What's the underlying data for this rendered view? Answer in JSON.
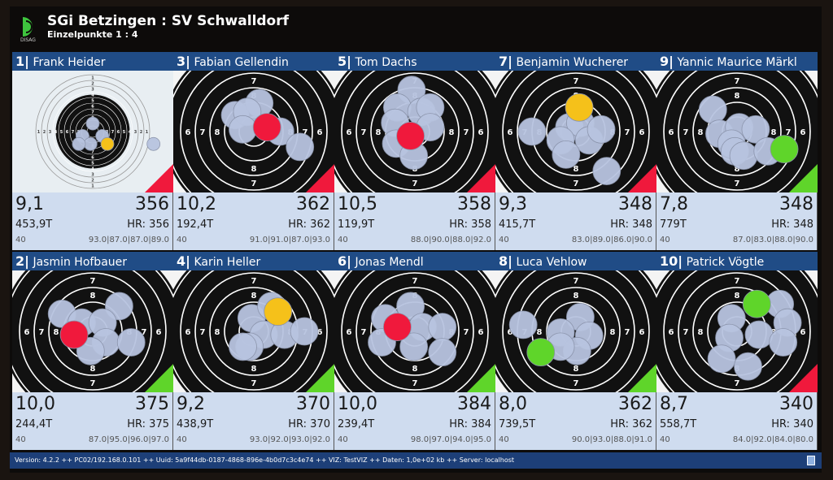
{
  "header": {
    "title": "SGi Betzingen : SV Schwalldorf",
    "subtitle": "Einzelpunkte 1 : 4",
    "logo_text": "DISAG"
  },
  "colors": {
    "name_bar": "#204c86",
    "score_bg": "#cfdcef",
    "shot": "#b8c4e0",
    "red": "#f0193c",
    "green": "#5fd52a",
    "yellow": "#f5c11a"
  },
  "panels": [
    {
      "num": "1|",
      "name": "Frank Heider",
      "last": "9,1",
      "total": "356",
      "time": "453,9T",
      "hr": "HR: 356",
      "shots": "40",
      "series": "93.0|87.0|87.0|89.0",
      "indicator": "red",
      "shot_marks": [
        [
          0,
          -1.1
        ],
        [
          -1.4,
          0.6
        ],
        [
          1.3,
          0.6
        ],
        [
          -0.3,
          1.7
        ],
        [
          8.3,
          1.7
        ],
        [
          -1.9,
          1.7
        ],
        [
          2,
          1.7,
          "yellow"
        ]
      ]
    },
    {
      "num": "3|",
      "name": "Fabian Gellendin",
      "last": "10,2",
      "total": "362",
      "time": "192,4T",
      "hr": "HR: 362",
      "shots": "40",
      "series": "91.0|91.0|87.0|93.0",
      "indicator": "red",
      "shot_marks": [
        [
          -0.85,
          -0.75
        ],
        [
          0.25,
          -1.3
        ],
        [
          -0.3,
          -0.9
        ],
        [
          -0.5,
          -0.1
        ],
        [
          1.2,
          0
        ],
        [
          2.1,
          0.7
        ],
        [
          0.6,
          -0.2,
          "red"
        ]
      ]
    },
    {
      "num": "5|",
      "name": "Tom Dachs",
      "last": "10,5",
      "total": "358",
      "time": "119,9T",
      "hr": "HR: 358",
      "shots": "40",
      "series": "88.0|90.0|88.0|92.0",
      "indicator": "red",
      "shot_marks": [
        [
          -0.15,
          -1.9
        ],
        [
          -0.8,
          -1.1
        ],
        [
          0.3,
          -0.9
        ],
        [
          0.7,
          -1.1
        ],
        [
          -0.9,
          -0.4
        ],
        [
          0.7,
          -0.2
        ],
        [
          -0.85,
          0.55
        ],
        [
          -0.05,
          1.1
        ],
        [
          -0.2,
          0.2,
          "red"
        ]
      ]
    },
    {
      "num": "7|",
      "name": "Benjamin Wucherer",
      "last": "9,3",
      "total": "348",
      "time": "415,7T",
      "hr": "HR: 348",
      "shots": "40",
      "series": "83.0|89.0|86.0|90.0",
      "indicator": "red",
      "shot_marks": [
        [
          -2,
          0
        ],
        [
          -0.3,
          -0.2
        ],
        [
          0.2,
          -0.4
        ],
        [
          0.6,
          0.4
        ],
        [
          1.15,
          -0.1
        ],
        [
          -0.7,
          0.4
        ],
        [
          -0.45,
          1.05
        ],
        [
          1.4,
          1.8
        ],
        [
          0.15,
          -1.1,
          "yellow"
        ]
      ]
    },
    {
      "num": "9|",
      "name": "Yannic Maurice Märkl",
      "last": "7,8",
      "total": "348",
      "time": "779T",
      "hr": "HR: 348",
      "shots": "40",
      "series": "87.0|83.0|88.0|90.0",
      "indicator": "green",
      "shot_marks": [
        [
          -1.1,
          -1
        ],
        [
          -0.8,
          0.1
        ],
        [
          0.1,
          -0.2
        ],
        [
          0.85,
          -0.1
        ],
        [
          -0.25,
          0.55
        ],
        [
          -0.1,
          0.9
        ],
        [
          0.3,
          1.1
        ],
        [
          1.4,
          0.9
        ],
        [
          2.15,
          0.8,
          "green"
        ]
      ]
    },
    {
      "num": "2|",
      "name": "Jasmin Hofbauer",
      "last": "10,0",
      "total": "375",
      "time": "244,4T",
      "hr": "HR: 375",
      "shots": "40",
      "series": "87.0|95.0|96.0|97.0",
      "indicator": "green",
      "shot_marks": [
        [
          -1.4,
          -0.8
        ],
        [
          1.2,
          -1.15
        ],
        [
          -0.5,
          -0.4
        ],
        [
          0.45,
          -0.4
        ],
        [
          0.6,
          0.5
        ],
        [
          1.75,
          0.5
        ],
        [
          -0.1,
          0.9
        ],
        [
          -0.85,
          0.15,
          "red"
        ]
      ]
    },
    {
      "num": "4|",
      "name": "Karin Heller",
      "last": "9,2",
      "total": "370",
      "time": "438,9T",
      "hr": "HR: 370",
      "shots": "40",
      "series": "93.0|92.0|93.0|92.0",
      "indicator": "green",
      "shot_marks": [
        [
          -0.1,
          -0.6
        ],
        [
          0.8,
          -1.15
        ],
        [
          0.45,
          0.15
        ],
        [
          1.4,
          0.15
        ],
        [
          2.3,
          0
        ],
        [
          -0.2,
          0.7
        ],
        [
          -0.5,
          0.7
        ],
        [
          1.1,
          -0.9,
          "yellow"
        ]
      ]
    },
    {
      "num": "6|",
      "name": "Jonas Mendl",
      "last": "10,0",
      "total": "384",
      "time": "239,4T",
      "hr": "HR: 384",
      "shots": "40",
      "series": "98.0|97.0|94.0|95.0",
      "indicator": "green",
      "shot_marks": [
        [
          -1.35,
          -0.6
        ],
        [
          -0.2,
          -1.15
        ],
        [
          0.35,
          -0.2
        ],
        [
          1.25,
          -0.2
        ],
        [
          -0.05,
          0.7
        ],
        [
          1.25,
          0.95
        ],
        [
          -1.5,
          0.5
        ],
        [
          -0.8,
          -0.2,
          "red"
        ]
      ]
    },
    {
      "num": "8|",
      "name": "Luca Vehlow",
      "last": "8,0",
      "total": "362",
      "time": "739,5T",
      "hr": "HR: 362",
      "shots": "40",
      "series": "90.0|93.0|88.0|91.0",
      "indicator": "green",
      "shot_marks": [
        [
          -2.4,
          -0.3
        ],
        [
          0.2,
          -0.65
        ],
        [
          -0.7,
          0.05
        ],
        [
          0.6,
          0.2
        ],
        [
          0.05,
          0.9
        ],
        [
          -0.7,
          0.7
        ],
        [
          -1.6,
          0.95,
          "green"
        ]
      ]
    },
    {
      "num": "10|",
      "name": "Patrick Vögtle",
      "last": "8,7",
      "total": "340",
      "time": "558,7T",
      "hr": "HR: 340",
      "shots": "40",
      "series": "84.0|92.0|84.0|80.0",
      "indicator": "red",
      "shot_marks": [
        [
          1.95,
          -1.25
        ],
        [
          -0.25,
          -0.6
        ],
        [
          -0.35,
          0.3
        ],
        [
          1,
          0.15
        ],
        [
          2.3,
          -0.4
        ],
        [
          2.1,
          0.5
        ],
        [
          -0.7,
          1.25
        ],
        [
          0.5,
          1.6
        ],
        [
          0.9,
          -1.25,
          "green"
        ]
      ]
    }
  ],
  "footer": {
    "text": "Version: 4.2.2 ++ PC02/192.168.0.101 ++ Uuid: 5a9f44db-0187-4868-896e-4b0d7c3c4e74 ++ VIZ: TestVIZ ++ Daten: 1,0e+02 kb ++ Server: localhost"
  }
}
